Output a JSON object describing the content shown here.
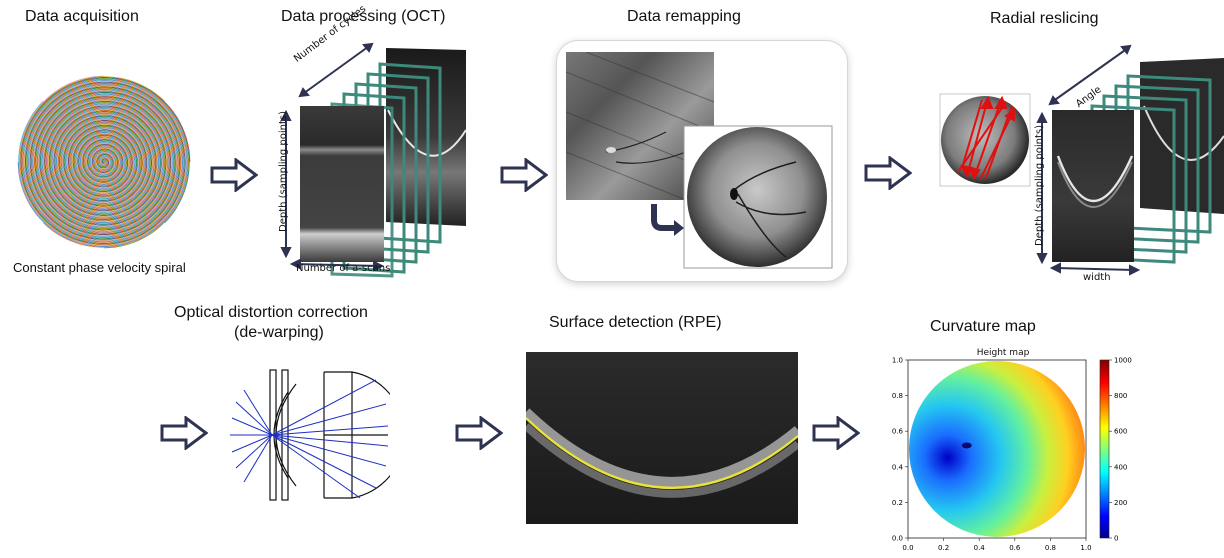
{
  "panels": {
    "acquisition": {
      "title": "Data acquisition",
      "caption": "Constant phase velocity spiral"
    },
    "processing": {
      "title": "Data processing (OCT)",
      "label_cycles": "Number of cycles",
      "label_depth": "Depth (sampling points)",
      "label_ascans": "Number of a-scans"
    },
    "remapping": {
      "title": "Data remapping"
    },
    "reslicing": {
      "title": "Radial reslicing",
      "label_angle": "Angle",
      "label_depth": "Depth (sampling points)",
      "label_width": "width"
    },
    "dewarping": {
      "title_line1": "Optical distortion correction",
      "title_line2": "(de-warping)"
    },
    "surface": {
      "title": "Surface detection (RPE)"
    },
    "curvature": {
      "title": "Curvature map"
    }
  },
  "chart_data": {
    "type": "heatmap",
    "title": "Height map",
    "xlim": [
      0.0,
      1.0
    ],
    "ylim": [
      0.0,
      1.0
    ],
    "xticks": [
      "0.0",
      "0.2",
      "0.4",
      "0.6",
      "0.8",
      "1.0"
    ],
    "yticks": [
      "0.0",
      "0.2",
      "0.4",
      "0.6",
      "0.8",
      "1.0"
    ],
    "colorbar": {
      "min": 0,
      "max": 1000,
      "ticks": [
        "0",
        "200",
        "400",
        "600",
        "800",
        "1000"
      ],
      "colormap": "jet"
    },
    "minimum_location": [
      0.33,
      0.52
    ],
    "shape": "circular disk"
  },
  "colors": {
    "arrow": "#2e3352",
    "frame_green": "#3d8a7c",
    "spiral": [
      "#d62728",
      "#1f77b4",
      "#2ca02c",
      "#ff7f0e",
      "#9467bd",
      "#17becf",
      "#e377c2",
      "#bcbd22"
    ],
    "ray_blue": "#1c2ec4",
    "rpe_yellow": "#e8e23a",
    "radial_red": "#e01010"
  }
}
